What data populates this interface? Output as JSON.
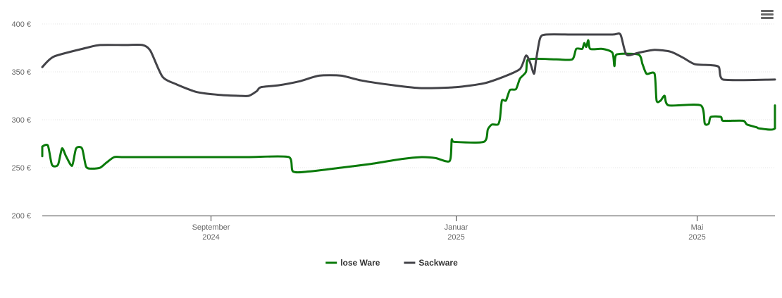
{
  "chart_data": {
    "type": "line",
    "ylim": [
      200,
      400
    ],
    "y_ticks": [
      "200 €",
      "250 €",
      "300 €",
      "350 €",
      "400 €"
    ],
    "y_tick_values": [
      200,
      250,
      300,
      350,
      400
    ],
    "xlim": [
      "2024-06-01",
      "2025-05-31"
    ],
    "x_ticks": [
      {
        "date": "2024-09-01",
        "line1": "September",
        "line2": "2024"
      },
      {
        "date": "2025-01-01",
        "line1": "Januar",
        "line2": "2025"
      },
      {
        "date": "2025-05-01",
        "line1": "Mai",
        "line2": "2025"
      }
    ],
    "grid": true,
    "legend_position": "bottom-center",
    "series": [
      {
        "name": "lose Ware",
        "color": "#0a7a0a",
        "points": [
          [
            "2024-06-01",
            262
          ],
          [
            "2024-06-05",
            268
          ],
          [
            "2024-06-09",
            272
          ],
          [
            "2024-06-12",
            273
          ],
          [
            "2024-06-14",
            253
          ],
          [
            "2024-06-17",
            253
          ],
          [
            "2024-06-19",
            270
          ],
          [
            "2024-06-21",
            262
          ],
          [
            "2024-06-24",
            252
          ],
          [
            "2024-06-26",
            270
          ],
          [
            "2024-06-29",
            270
          ],
          [
            "2024-07-01",
            251
          ],
          [
            "2024-07-04",
            249
          ],
          [
            "2024-07-08",
            250
          ],
          [
            "2024-07-11",
            255
          ],
          [
            "2024-07-15",
            261
          ],
          [
            "2024-07-20",
            261
          ],
          [
            "2024-08-10",
            261
          ],
          [
            "2024-09-01",
            261
          ],
          [
            "2024-09-20",
            261
          ],
          [
            "2024-10-10",
            261
          ],
          [
            "2024-10-12",
            246
          ],
          [
            "2024-10-20",
            246
          ],
          [
            "2024-11-05",
            250
          ],
          [
            "2024-11-20",
            254
          ],
          [
            "2024-12-05",
            259
          ],
          [
            "2024-12-15",
            261
          ],
          [
            "2024-12-22",
            260
          ],
          [
            "2024-12-29",
            257
          ],
          [
            "2024-12-30",
            279
          ],
          [
            "2024-12-31",
            277
          ],
          [
            "2025-01-15",
            277
          ],
          [
            "2025-01-17",
            290
          ],
          [
            "2025-01-19",
            295
          ],
          [
            "2025-01-22",
            295
          ],
          [
            "2025-01-23",
            301
          ],
          [
            "2025-01-24",
            320
          ],
          [
            "2025-01-26",
            320
          ],
          [
            "2025-01-28",
            331
          ],
          [
            "2025-01-31",
            332
          ],
          [
            "2025-02-02",
            343
          ],
          [
            "2025-02-05",
            350
          ],
          [
            "2025-02-06",
            363
          ],
          [
            "2025-02-20",
            363
          ],
          [
            "2025-02-28",
            363
          ],
          [
            "2025-03-02",
            374
          ],
          [
            "2025-03-05",
            374
          ],
          [
            "2025-03-06",
            380
          ],
          [
            "2025-03-07",
            376
          ],
          [
            "2025-03-08",
            383
          ],
          [
            "2025-03-09",
            374
          ],
          [
            "2025-03-15",
            374
          ],
          [
            "2025-03-20",
            370
          ],
          [
            "2025-03-21",
            356
          ],
          [
            "2025-03-22",
            368
          ],
          [
            "2025-04-02",
            368
          ],
          [
            "2025-04-04",
            358
          ],
          [
            "2025-04-06",
            348
          ],
          [
            "2025-04-10",
            348
          ],
          [
            "2025-04-11",
            320
          ],
          [
            "2025-04-13",
            320
          ],
          [
            "2025-04-15",
            325
          ],
          [
            "2025-04-17",
            315
          ],
          [
            "2025-05-03",
            315
          ],
          [
            "2025-05-05",
            296
          ],
          [
            "2025-05-07",
            296
          ],
          [
            "2025-05-08",
            303
          ],
          [
            "2025-05-13",
            303
          ],
          [
            "2025-05-14",
            299
          ],
          [
            "2025-05-24",
            299
          ],
          [
            "2025-05-26",
            295
          ],
          [
            "2025-05-31",
            292
          ],
          [
            "2025-06-01",
            291
          ],
          [
            "2025-06-11",
            291
          ],
          [
            "2025-06-12",
            315
          ]
        ]
      },
      {
        "name": "Sackware",
        "color": "#434348",
        "points": [
          [
            "2024-06-01",
            355
          ],
          [
            "2024-06-15",
            366
          ],
          [
            "2024-07-01",
            375
          ],
          [
            "2024-07-08",
            378
          ],
          [
            "2024-07-20",
            378
          ],
          [
            "2024-07-29",
            378
          ],
          [
            "2024-08-02",
            372
          ],
          [
            "2024-08-08",
            345
          ],
          [
            "2024-08-15",
            337
          ],
          [
            "2024-08-25",
            329
          ],
          [
            "2024-09-05",
            326
          ],
          [
            "2024-09-15",
            325
          ],
          [
            "2024-09-20",
            325
          ],
          [
            "2024-09-24",
            330
          ],
          [
            "2024-09-26",
            334
          ],
          [
            "2024-10-05",
            336
          ],
          [
            "2024-10-15",
            340
          ],
          [
            "2024-10-25",
            346
          ],
          [
            "2024-11-05",
            346
          ],
          [
            "2024-11-15",
            341
          ],
          [
            "2024-12-01",
            336
          ],
          [
            "2024-12-15",
            333
          ],
          [
            "2025-01-01",
            334
          ],
          [
            "2025-01-15",
            338
          ],
          [
            "2025-01-25",
            345
          ],
          [
            "2025-02-02",
            353
          ],
          [
            "2025-02-05",
            367
          ],
          [
            "2025-02-07",
            360
          ],
          [
            "2025-02-09",
            348
          ],
          [
            "2025-02-10",
            362
          ],
          [
            "2025-02-12",
            385
          ],
          [
            "2025-02-15",
            389
          ],
          [
            "2025-03-01",
            389
          ],
          [
            "2025-03-20",
            389
          ],
          [
            "2025-03-24",
            389
          ],
          [
            "2025-03-27",
            368
          ],
          [
            "2025-04-02",
            370
          ],
          [
            "2025-04-10",
            373
          ],
          [
            "2025-04-18",
            371
          ],
          [
            "2025-04-24",
            365
          ],
          [
            "2025-04-30",
            358
          ],
          [
            "2025-05-08",
            357
          ],
          [
            "2025-05-12",
            355
          ],
          [
            "2025-05-14",
            342
          ],
          [
            "2025-06-12",
            342
          ]
        ]
      }
    ]
  },
  "legend": {
    "items": [
      "lose Ware",
      "Sackware"
    ]
  },
  "menu": {
    "icon": "hamburger-menu-icon"
  }
}
